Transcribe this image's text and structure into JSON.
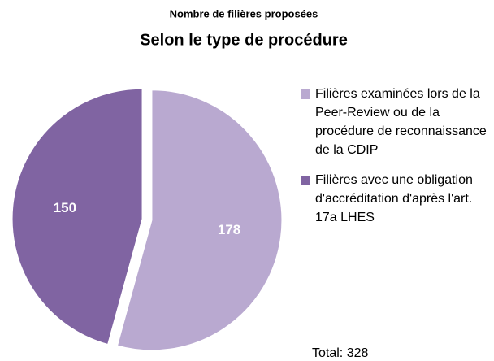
{
  "chart_data": {
    "type": "pie",
    "subtitle": "Nombre de filières proposées",
    "title": "Selon le type de procédure",
    "categories": [
      "Filières examinées lors de la Peer-Review ou de la procédure de reconnaissance de la CDIP",
      "Filières avec une obligation d'accréditation d'après l'art. 17a LHES"
    ],
    "values": [
      178,
      150
    ],
    "colors": [
      "#b9a9d0",
      "#8064a2"
    ],
    "annotation": "Total: 328"
  }
}
